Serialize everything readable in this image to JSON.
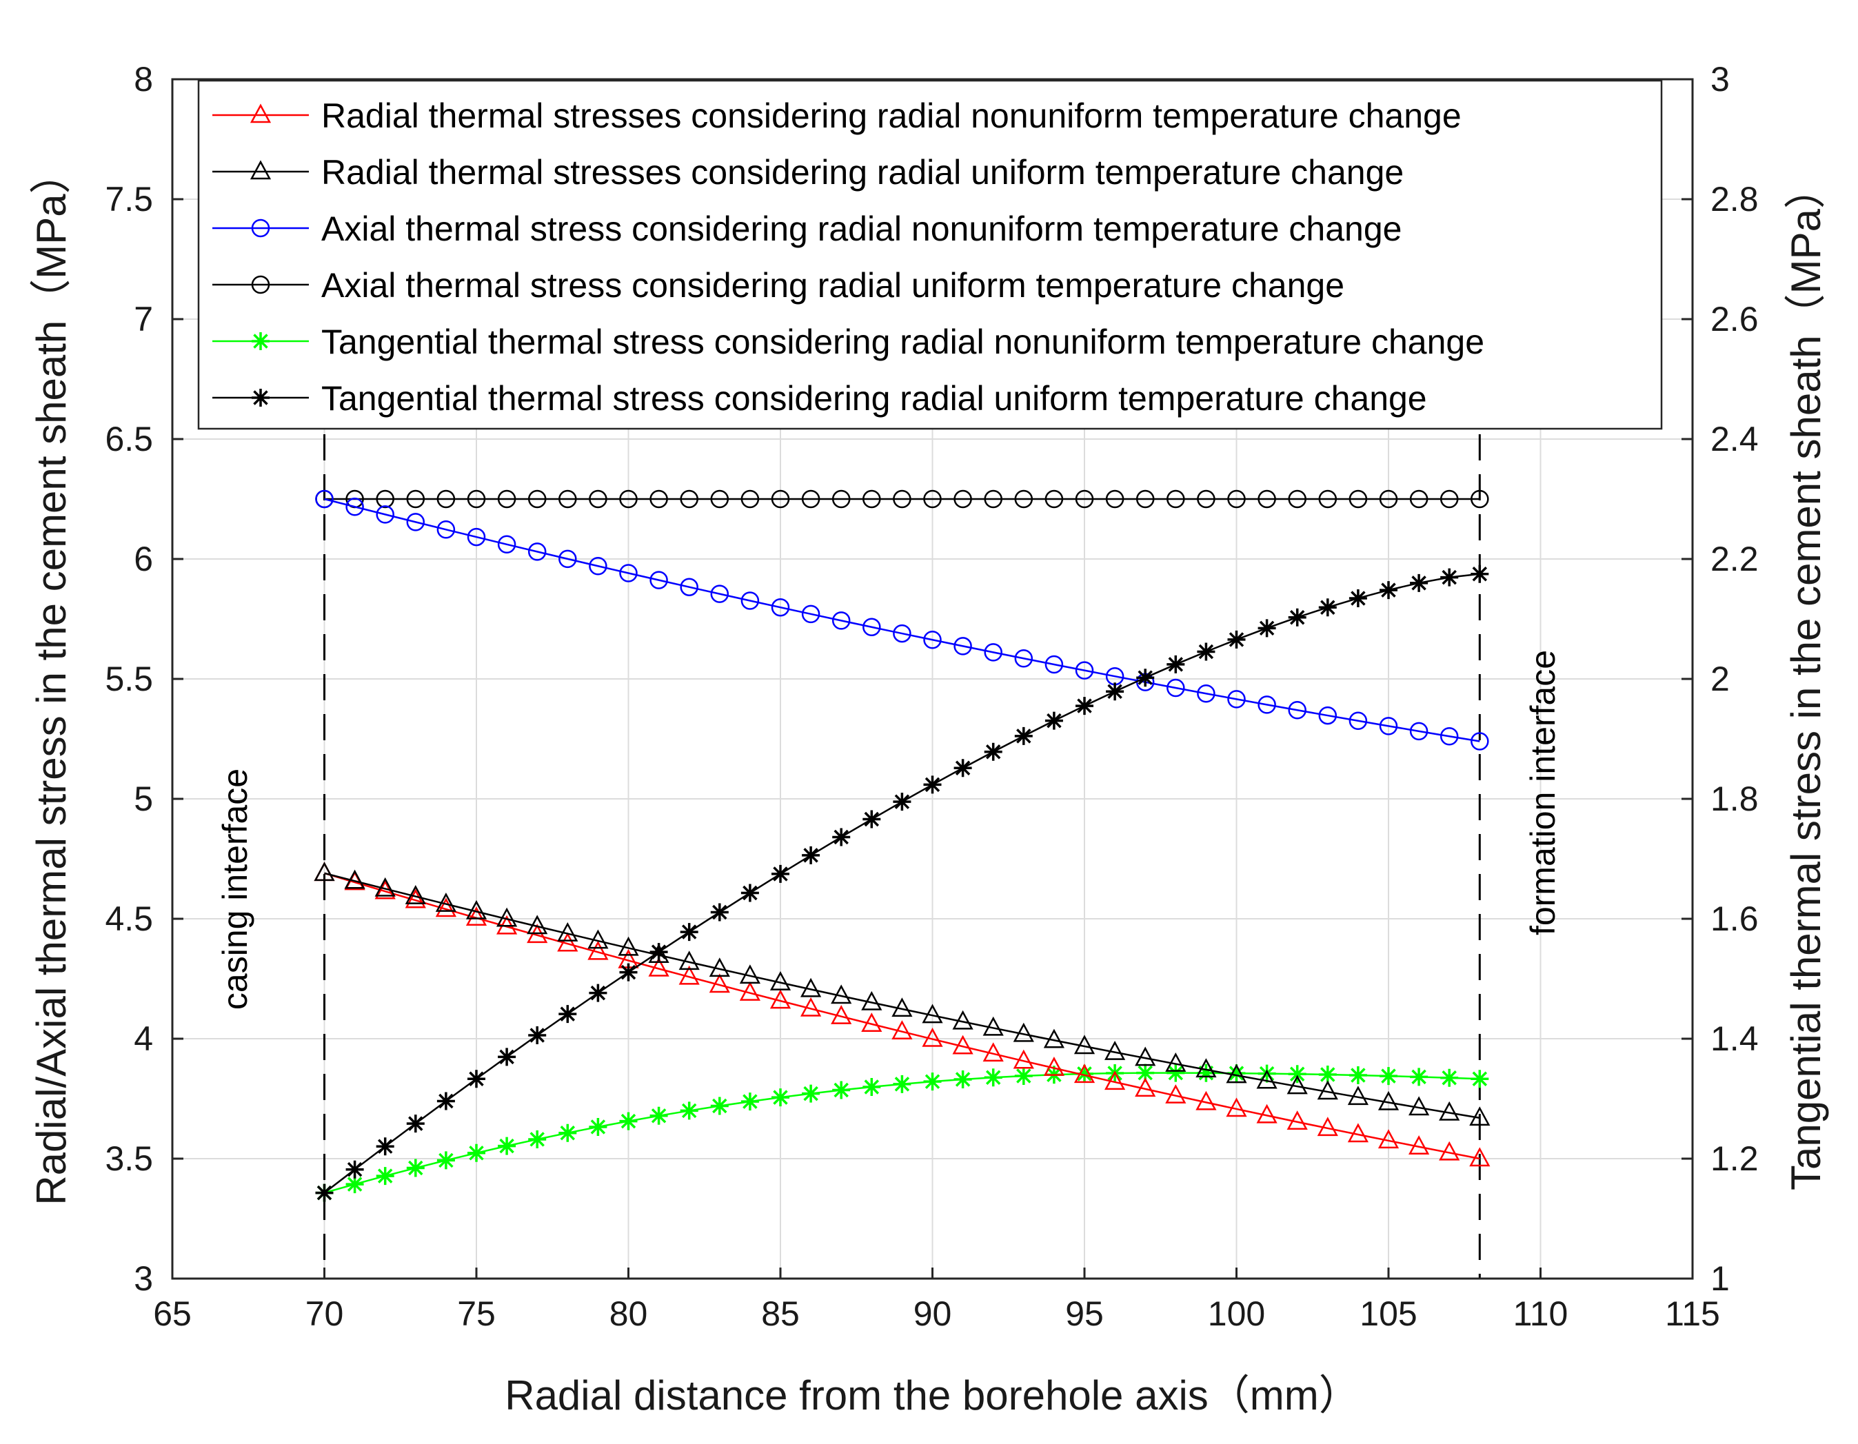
{
  "chart_data": {
    "type": "line",
    "xlabel": "Radial distance from the borehole axis（mm）",
    "ylabel_left": "Radial/Axial thermal stress in the cement sheath（MPa）",
    "ylabel_right": "Tangential thermal stress in the cement sheath（MPa）",
    "xlim": [
      65,
      115
    ],
    "ylim_left": [
      3,
      8
    ],
    "ylim_right": [
      1,
      3
    ],
    "xticks": [
      "65",
      "70",
      "75",
      "80",
      "85",
      "90",
      "95",
      "100",
      "105",
      "110",
      "115"
    ],
    "yticks_left": [
      "3",
      "3.5",
      "4",
      "4.5",
      "5",
      "5.5",
      "6",
      "6.5",
      "7",
      "7.5",
      "8"
    ],
    "yticks_right": [
      "1",
      "1.2",
      "1.4",
      "1.6",
      "1.8",
      "2",
      "2.2",
      "2.4",
      "2.6",
      "2.8",
      "3"
    ],
    "grid": true,
    "legend_position": "top",
    "x_start": 70,
    "x_end": 108,
    "n_points": 39,
    "annotations": [
      {
        "text": "casing interface",
        "x": 70
      },
      {
        "text": "formation interface",
        "x": 108
      }
    ],
    "series": [
      {
        "name": "Radial thermal stresses considering radial nonuniform temperature change",
        "axis": "left",
        "marker": "triangle",
        "color": "#ff0000",
        "start": 4.69,
        "end": 3.5
      },
      {
        "name": "Radial thermal stresses considering radial uniform temperature change",
        "axis": "left",
        "marker": "triangle",
        "color": "#000000",
        "start": 4.69,
        "end": 3.67
      },
      {
        "name": "Axial thermal stress considering radial nonuniform temperature change",
        "axis": "left",
        "marker": "circle",
        "color": "#0000ff",
        "start": 6.25,
        "end": 5.24
      },
      {
        "name": "Axial thermal stress considering radial uniform temperature change",
        "axis": "left",
        "marker": "circle",
        "color": "#000000",
        "start": 6.25,
        "end": 6.25
      },
      {
        "name": "Tangential thermal stress considering radial nonuniform temperature change",
        "axis": "right",
        "marker": "star",
        "color": "#00ff00",
        "start": 1.143,
        "peak": 1.343,
        "end": 1.333
      },
      {
        "name": "Tangential thermal stress considering radial uniform temperature change",
        "axis": "right",
        "marker": "star",
        "color": "#000000",
        "start": 1.143,
        "end": 2.175
      }
    ]
  }
}
